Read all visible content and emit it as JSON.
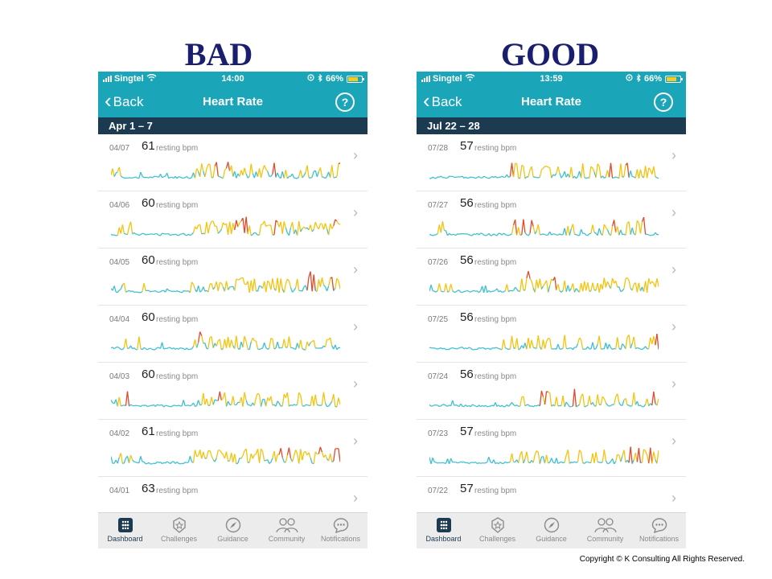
{
  "headings": {
    "left": "BAD",
    "right": "GOOD"
  },
  "colors": {
    "teal": "#1aa5b8",
    "navy": "#1c3a50",
    "low": "#3fbfcf",
    "mid": "#f2c411",
    "high": "#e04a2a"
  },
  "phones": [
    {
      "status": {
        "carrier": "Singtel",
        "time": "14:00",
        "battery": "66%"
      },
      "nav": {
        "back": "Back",
        "title": "Heart Rate",
        "help": "?"
      },
      "week": "Apr 1 – 7",
      "unit": "resting bpm",
      "days": [
        {
          "date": "04/07",
          "bpm": "61",
          "seed": 7,
          "activity": 0.55
        },
        {
          "date": "04/06",
          "bpm": "60",
          "seed": 13,
          "activity": 0.75
        },
        {
          "date": "04/05",
          "bpm": "60",
          "seed": 21,
          "activity": 0.8
        },
        {
          "date": "04/04",
          "bpm": "60",
          "seed": 33,
          "activity": 0.6
        },
        {
          "date": "04/03",
          "bpm": "60",
          "seed": 41,
          "activity": 0.6
        },
        {
          "date": "04/02",
          "bpm": "61",
          "seed": 55,
          "activity": 0.85
        },
        {
          "date": "04/01",
          "bpm": "63",
          "seed": 61,
          "activity": 0
        }
      ],
      "tabs": [
        "Dashboard",
        "Challenges",
        "Guidance",
        "Community",
        "Notifications"
      ]
    },
    {
      "status": {
        "carrier": "Singtel",
        "time": "13:59",
        "battery": "66%"
      },
      "nav": {
        "back": "Back",
        "title": "Heart Rate",
        "help": "?"
      },
      "week": "Jul 22 – 28",
      "unit": "resting bpm",
      "days": [
        {
          "date": "07/28",
          "bpm": "57",
          "seed": 71,
          "activity": 0.45
        },
        {
          "date": "07/27",
          "bpm": "56",
          "seed": 83,
          "activity": 0.45
        },
        {
          "date": "07/26",
          "bpm": "56",
          "seed": 97,
          "activity": 0.65
        },
        {
          "date": "07/25",
          "bpm": "56",
          "seed": 103,
          "activity": 0.4
        },
        {
          "date": "07/24",
          "bpm": "56",
          "seed": 117,
          "activity": 0.5
        },
        {
          "date": "07/23",
          "bpm": "57",
          "seed": 129,
          "activity": 0.5
        },
        {
          "date": "07/22",
          "bpm": "57",
          "seed": 137,
          "activity": 0
        }
      ],
      "tabs": [
        "Dashboard",
        "Challenges",
        "Guidance",
        "Community",
        "Notifications"
      ]
    }
  ],
  "copyright": "Copyright © K Consulting   All Rights Reserved."
}
